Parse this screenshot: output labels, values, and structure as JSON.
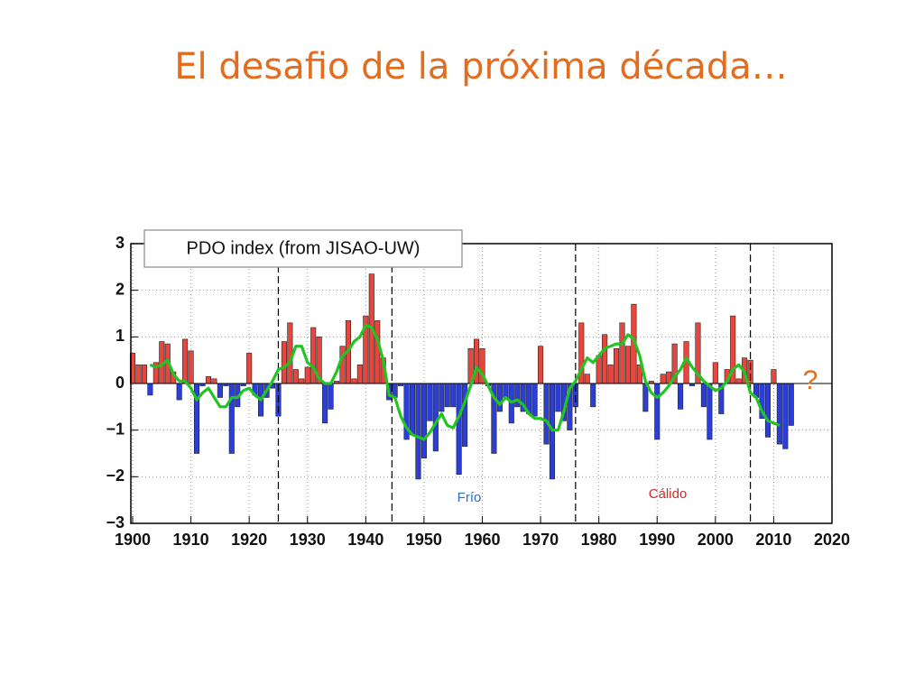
{
  "chart_data": {
    "type": "bar",
    "title": "El desafio de la próxima década…",
    "box_label": "PDO index (from JISAO-UW)",
    "annotations": [
      {
        "text": "Frío",
        "color": "#2a6fc9"
      },
      {
        "text": "Cálido",
        "color": "#d42a2a"
      },
      {
        "text": "?",
        "color": "#e36c1e"
      }
    ],
    "x": [
      1900,
      1901,
      1902,
      1903,
      1904,
      1905,
      1906,
      1907,
      1908,
      1909,
      1910,
      1911,
      1912,
      1913,
      1914,
      1915,
      1916,
      1917,
      1918,
      1919,
      1920,
      1921,
      1922,
      1923,
      1924,
      1925,
      1926,
      1927,
      1928,
      1929,
      1930,
      1931,
      1932,
      1933,
      1934,
      1935,
      1936,
      1937,
      1938,
      1939,
      1940,
      1941,
      1942,
      1943,
      1944,
      1945,
      1946,
      1947,
      1948,
      1949,
      1950,
      1951,
      1952,
      1953,
      1954,
      1955,
      1956,
      1957,
      1958,
      1959,
      1960,
      1961,
      1962,
      1963,
      1964,
      1965,
      1966,
      1967,
      1968,
      1969,
      1970,
      1971,
      1972,
      1973,
      1974,
      1975,
      1976,
      1977,
      1978,
      1979,
      1980,
      1981,
      1982,
      1983,
      1984,
      1985,
      1986,
      1987,
      1988,
      1989,
      1990,
      1991,
      1992,
      1993,
      1994,
      1995,
      1996,
      1997,
      1998,
      1999,
      2000,
      2001,
      2002,
      2003,
      2004,
      2005,
      2006,
      2007,
      2008,
      2009,
      2010,
      2011,
      2012,
      2013
    ],
    "values": [
      0.65,
      0.4,
      0.4,
      -0.25,
      0.45,
      0.9,
      0.85,
      0.25,
      -0.35,
      0.95,
      0.7,
      -1.5,
      -0.05,
      0.15,
      0.1,
      -0.3,
      -0.05,
      -1.5,
      -0.5,
      -0.05,
      0.65,
      -0.25,
      -0.7,
      -0.3,
      -0.1,
      -0.7,
      0.9,
      1.3,
      0.3,
      0.1,
      0.35,
      1.2,
      1.0,
      -0.85,
      -0.55,
      0.05,
      0.8,
      1.35,
      0.1,
      0.4,
      1.45,
      2.35,
      1.35,
      0.55,
      -0.35,
      -0.3,
      -0.05,
      -1.2,
      -1.1,
      -2.05,
      -1.6,
      -0.8,
      -1.45,
      -0.6,
      -0.5,
      -0.5,
      -1.95,
      -1.35,
      0.75,
      0.95,
      0.75,
      -0.05,
      -1.5,
      -0.6,
      -0.3,
      -0.85,
      -0.5,
      -0.6,
      -0.65,
      -0.7,
      0.8,
      -1.3,
      -2.05,
      -0.6,
      -0.8,
      -1.0,
      -0.5,
      1.3,
      0.2,
      -0.5,
      0.6,
      1.05,
      0.4,
      0.75,
      1.3,
      0.8,
      1.7,
      0.4,
      -0.6,
      0.05,
      -1.2,
      0.2,
      0.25,
      0.85,
      -0.55,
      0.9,
      -0.05,
      1.3,
      -0.5,
      -1.2,
      0.45,
      -0.65,
      0.3,
      1.45,
      0.1,
      0.55,
      0.5,
      -0.3,
      -0.75,
      -1.15,
      0.3,
      -1.3,
      -1.4,
      -0.9
    ],
    "positive_color": "#e8463c",
    "negative_color": "#2b3fd8",
    "line_values": [
      null,
      null,
      null,
      0.4,
      0.35,
      0.4,
      0.5,
      0.2,
      0.05,
      0.05,
      -0.1,
      -0.35,
      -0.2,
      -0.1,
      -0.3,
      -0.5,
      -0.5,
      -0.3,
      -0.3,
      -0.15,
      -0.1,
      -0.25,
      -0.35,
      -0.15,
      0.05,
      0.3,
      0.35,
      0.45,
      0.8,
      0.8,
      0.45,
      0.35,
      0.1,
      0,
      0,
      0.25,
      0.6,
      0.7,
      0.9,
      1.0,
      1.25,
      1.2,
      0.95,
      0.5,
      -0.25,
      -0.3,
      -0.7,
      -0.95,
      -1.1,
      -1.15,
      -1.2,
      -1.05,
      -0.85,
      -0.65,
      -0.9,
      -0.95,
      -0.7,
      -0.4,
      -0.05,
      0.35,
      0.2,
      -0.05,
      -0.3,
      -0.45,
      -0.3,
      -0.4,
      -0.35,
      -0.45,
      -0.65,
      -0.75,
      -0.75,
      -0.8,
      -1.0,
      -1.0,
      -0.6,
      -0.1,
      0.05,
      0.3,
      0.55,
      0.45,
      0.6,
      0.75,
      0.8,
      0.85,
      0.85,
      1.05,
      0.95,
      0.6,
      0.05,
      -0.2,
      -0.3,
      -0.2,
      -0.05,
      0.15,
      0.3,
      0.55,
      0.35,
      0.2,
      0.05,
      -0.05,
      -0.15,
      -0.1,
      0.05,
      0.3,
      0.4,
      0.25,
      -0.2,
      -0.3,
      -0.6,
      -0.8,
      -0.85,
      -0.9,
      null,
      null
    ],
    "line_color": "#22c422",
    "regime_shifts": [
      1925,
      1944.5,
      1976,
      2006
    ],
    "xlim": [
      1900,
      2020
    ],
    "xticks": [
      1900,
      1910,
      1920,
      1930,
      1940,
      1950,
      1960,
      1970,
      1980,
      1990,
      2000,
      2010,
      2020
    ],
    "ylim": [
      -3,
      3
    ],
    "yticks": [
      {
        "value": -3,
        "label": "−3"
      },
      {
        "value": -2,
        "label": "−2"
      },
      {
        "value": -1,
        "label": "−1"
      },
      0,
      1,
      2,
      3
    ],
    "grid": true
  }
}
